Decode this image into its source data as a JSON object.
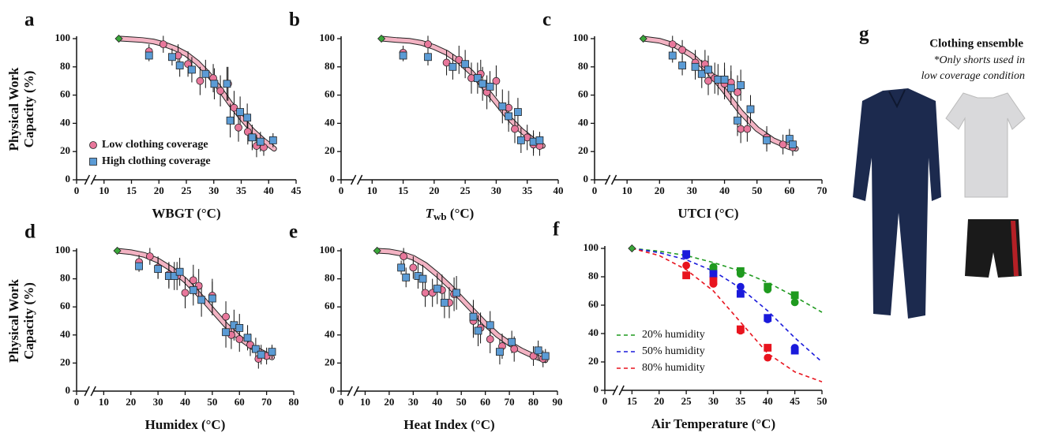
{
  "chart_data": [
    {
      "type": "scatter",
      "panel_label": "a",
      "xlabel": [
        "WBGT (°C)"
      ],
      "ylabel": [
        "Physical Work",
        "Capacity (%)"
      ],
      "xlim": [
        0,
        45
      ],
      "xbreak": [
        0,
        10
      ],
      "xticks": [
        0,
        10,
        15,
        20,
        25,
        30,
        35,
        40,
        45
      ],
      "ylim": [
        0,
        100
      ],
      "yticks": [
        0,
        20,
        40,
        60,
        80,
        100
      ],
      "legend": "lower left",
      "series": [
        {
          "name": "Low clothing coverage",
          "color": "#e8779b",
          "marker": "circle",
          "x": [
            18.2,
            20.8,
            23.5,
            25.3,
            27.5,
            29.9,
            31.2,
            32.6,
            33.7,
            34.5,
            36.2,
            37.8,
            39.1
          ],
          "values": [
            91,
            96,
            88,
            82,
            70,
            72,
            63,
            68,
            51,
            37,
            34,
            24,
            23
          ],
          "errors": [
            5,
            6,
            8,
            9,
            10,
            10,
            11,
            12,
            12,
            10,
            9,
            8,
            6
          ]
        },
        {
          "name": "High clothing coverage",
          "color": "#5b9bd5",
          "marker": "square",
          "x": [
            18.2,
            22.4,
            23.8,
            26.0,
            28.5,
            30.1,
            32.4,
            33.0,
            34.8,
            36.1,
            37.0,
            38.5,
            40.8
          ],
          "values": [
            88,
            87,
            81,
            78,
            75,
            68,
            68,
            42,
            48,
            44,
            30,
            27,
            28
          ],
          "errors": [
            4,
            6,
            8,
            9,
            10,
            11,
            12,
            12,
            11,
            10,
            9,
            7,
            5
          ]
        }
      ],
      "fit": {
        "x": [
          13,
          15,
          17,
          19,
          21,
          23,
          25,
          27,
          29,
          31,
          33,
          35,
          37,
          39,
          41
        ],
        "values": [
          100,
          99.5,
          99,
          98,
          96,
          93,
          89,
          83,
          75,
          65,
          54,
          44,
          35,
          28,
          22
        ]
      },
      "reference": {
        "color": "#3aa63a",
        "x": [
          12.7
        ],
        "values": [
          100
        ]
      }
    },
    {
      "type": "scatter",
      "panel_label": "b",
      "xlabel": [
        "T",
        "wb",
        " (°C)"
      ],
      "xlim": [
        0,
        40
      ],
      "xbreak": [
        0,
        10
      ],
      "xticks": [
        0,
        10,
        15,
        20,
        25,
        30,
        35,
        40
      ],
      "ylim": [
        0,
        100
      ],
      "yticks": [
        0,
        20,
        40,
        60,
        80,
        100
      ],
      "series": [
        {
          "color": "#e8779b",
          "marker": "circle",
          "x": [
            15,
            19,
            22,
            24,
            26,
            27.5,
            28.5,
            30,
            32,
            33,
            35,
            36,
            37
          ],
          "values": [
            90,
            96,
            83,
            85,
            72,
            75,
            62,
            70,
            51,
            36,
            30,
            25,
            24
          ],
          "errors": [
            5,
            6,
            9,
            10,
            11,
            10,
            12,
            11,
            12,
            10,
            9,
            8,
            7
          ]
        },
        {
          "color": "#5b9bd5",
          "marker": "square",
          "x": [
            15,
            19,
            23,
            25,
            27,
            27.8,
            29,
            31,
            32,
            33.5,
            34,
            36,
            37
          ],
          "values": [
            88,
            87,
            80,
            82,
            72,
            68,
            66,
            52,
            45,
            48,
            28,
            27,
            28
          ],
          "errors": [
            4,
            6,
            9,
            10,
            11,
            12,
            11,
            12,
            11,
            10,
            9,
            8,
            6
          ]
        }
      ],
      "fit": {
        "x": [
          11.5,
          14,
          16,
          18,
          20,
          22,
          24,
          26,
          28,
          30,
          32,
          34,
          36,
          37.5
        ],
        "values": [
          100,
          99,
          98.5,
          97,
          94,
          90,
          84,
          76,
          66,
          55,
          44,
          35,
          28,
          24
        ]
      },
      "reference": {
        "color": "#3aa63a",
        "x": [
          11.5
        ],
        "values": [
          100
        ]
      }
    },
    {
      "type": "scatter",
      "panel_label": "c",
      "xlabel": [
        "UTCI (°C)"
      ],
      "xlim": [
        0,
        70
      ],
      "xbreak": [
        0,
        10
      ],
      "xticks": [
        0,
        10,
        20,
        30,
        40,
        50,
        60,
        70
      ],
      "ylim": [
        0,
        100
      ],
      "yticks": [
        0,
        20,
        40,
        60,
        80,
        100
      ],
      "series": [
        {
          "color": "#e8779b",
          "marker": "circle",
          "x": [
            24,
            27,
            31,
            34,
            35,
            37,
            40,
            42,
            44,
            45,
            47,
            53,
            58,
            61
          ],
          "values": [
            96,
            92,
            83,
            82,
            70,
            72,
            68,
            69,
            62,
            36,
            36,
            30,
            25,
            23
          ],
          "errors": [
            6,
            7,
            9,
            10,
            10,
            11,
            11,
            12,
            12,
            10,
            9,
            8,
            7,
            6
          ]
        },
        {
          "color": "#5b9bd5",
          "marker": "square",
          "x": [
            24,
            27,
            31,
            33,
            35,
            38,
            40,
            42,
            44,
            45,
            48,
            53,
            60,
            61
          ],
          "values": [
            88,
            81,
            80,
            75,
            78,
            71,
            71,
            65,
            42,
            67,
            50,
            28,
            29,
            25
          ],
          "errors": [
            5,
            7,
            9,
            10,
            10,
            11,
            12,
            12,
            11,
            11,
            10,
            8,
            7,
            6
          ]
        }
      ],
      "fit": {
        "x": [
          15,
          20,
          25,
          30,
          35,
          40,
          45,
          50,
          55,
          60,
          62
        ],
        "values": [
          100,
          98.5,
          95,
          88,
          77,
          63,
          48,
          36,
          28,
          23,
          22
        ]
      },
      "reference": {
        "color": "#3aa63a",
        "x": [
          15
        ],
        "values": [
          100
        ]
      }
    },
    {
      "type": "scatter",
      "panel_label": "d",
      "xlabel": [
        "Humidex (°C)"
      ],
      "ylabel": [
        "Physical Work",
        "Capacity (%)"
      ],
      "xlim": [
        0,
        80
      ],
      "xbreak": [
        0,
        10
      ],
      "xticks": [
        0,
        10,
        20,
        30,
        40,
        50,
        60,
        70,
        80
      ],
      "ylim": [
        0,
        100
      ],
      "yticks": [
        0,
        20,
        40,
        60,
        80,
        100
      ],
      "series": [
        {
          "color": "#e8779b",
          "marker": "circle",
          "x": [
            23,
            27,
            30,
            34,
            37,
            40,
            43,
            45,
            50,
            55,
            57,
            60,
            64,
            67,
            70
          ],
          "values": [
            92,
            96,
            88,
            83,
            82,
            70,
            79,
            75,
            68,
            53,
            40,
            37,
            33,
            23,
            25
          ],
          "errors": [
            5,
            6,
            8,
            9,
            10,
            11,
            11,
            12,
            12,
            11,
            10,
            9,
            8,
            7,
            6
          ]
        },
        {
          "color": "#5b9bd5",
          "marker": "square",
          "x": [
            23,
            30,
            34,
            36,
            38,
            43,
            46,
            50,
            55,
            58,
            60,
            63,
            66,
            68,
            72
          ],
          "values": [
            89,
            87,
            82,
            82,
            85,
            72,
            65,
            66,
            42,
            47,
            45,
            38,
            30,
            26,
            28
          ],
          "errors": [
            4,
            7,
            9,
            10,
            10,
            11,
            12,
            12,
            11,
            11,
            10,
            9,
            8,
            7,
            5
          ]
        }
      ],
      "fit": {
        "x": [
          15,
          20,
          25,
          30,
          35,
          40,
          45,
          50,
          55,
          60,
          65,
          70,
          72
        ],
        "values": [
          100,
          99,
          97,
          93,
          87,
          79,
          69,
          58,
          47,
          38,
          31,
          26,
          24
        ]
      },
      "reference": {
        "color": "#3aa63a",
        "x": [
          15
        ],
        "values": [
          100
        ]
      }
    },
    {
      "type": "scatter",
      "panel_label": "e",
      "xlabel": [
        "Heat Index (°C)"
      ],
      "xlim": [
        0,
        90
      ],
      "xbreak": [
        0,
        10
      ],
      "xticks": [
        0,
        10,
        20,
        30,
        40,
        50,
        60,
        70,
        80,
        90
      ],
      "ylim": [
        0,
        100
      ],
      "yticks": [
        0,
        20,
        40,
        60,
        80,
        100
      ],
      "series": [
        {
          "color": "#e8779b",
          "marker": "circle",
          "x": [
            26,
            30,
            35,
            38,
            42,
            45,
            47,
            55,
            58,
            62,
            67,
            72,
            80,
            84
          ],
          "values": [
            96,
            88,
            70,
            70,
            72,
            63,
            69,
            50,
            45,
            37,
            32,
            30,
            25,
            23
          ],
          "errors": [
            6,
            8,
            10,
            10,
            11,
            11,
            12,
            12,
            11,
            10,
            9,
            9,
            7,
            6
          ]
        },
        {
          "color": "#5b9bd5",
          "marker": "square",
          "x": [
            25,
            27,
            32,
            34,
            40,
            43,
            48,
            55,
            57,
            62,
            66,
            71,
            82,
            85
          ],
          "values": [
            88,
            81,
            82,
            80,
            73,
            63,
            70,
            53,
            43,
            47,
            28,
            35,
            29,
            25
          ],
          "errors": [
            5,
            7,
            9,
            10,
            11,
            11,
            12,
            12,
            11,
            10,
            9,
            8,
            7,
            5
          ]
        }
      ],
      "fit": {
        "x": [
          15,
          20,
          25,
          30,
          35,
          40,
          45,
          50,
          55,
          60,
          65,
          70,
          75,
          80,
          85
        ],
        "values": [
          100,
          99.5,
          98,
          95,
          90,
          83,
          75,
          66,
          57,
          48,
          40,
          34,
          29,
          25,
          22
        ]
      },
      "reference": {
        "color": "#3aa63a",
        "x": [
          15
        ],
        "values": [
          100
        ]
      }
    },
    {
      "type": "line",
      "panel_label": "f",
      "xlabel": [
        "Air Temperature  (°C)"
      ],
      "xlim": [
        0,
        50
      ],
      "xbreak": [
        0,
        15
      ],
      "xticks": [
        0,
        15,
        20,
        25,
        30,
        35,
        40,
        45,
        50
      ],
      "ylim": [
        0,
        100
      ],
      "yticks": [
        0,
        20,
        40,
        60,
        80,
        100
      ],
      "legend": "lower left",
      "series": [
        {
          "name": "20% humidity",
          "color": "#1f9a1f",
          "x": [
            15,
            20,
            25,
            30,
            35,
            40,
            45,
            50
          ],
          "values": [
            100,
            98,
            95,
            90,
            84,
            76,
            66,
            55
          ]
        },
        {
          "name": "50% humidity",
          "color": "#1a1adb",
          "x": [
            15,
            20,
            25,
            30,
            35,
            40,
            45,
            50
          ],
          "values": [
            100,
            97,
            92,
            84,
            72,
            56,
            37,
            20
          ]
        },
        {
          "name": "80% humidity",
          "color": "#e8141e",
          "x": [
            15,
            20,
            25,
            30,
            35,
            40,
            45,
            50
          ],
          "values": [
            100,
            95,
            85,
            70,
            48,
            26,
            13,
            6
          ]
        }
      ],
      "markers": [
        {
          "color": "#1f9a1f",
          "marker": "circle",
          "x": [
            30,
            35,
            40,
            45
          ],
          "values": [
            87,
            82,
            71,
            62
          ]
        },
        {
          "color": "#1f9a1f",
          "marker": "square",
          "x": [
            30,
            35,
            40,
            45
          ],
          "values": [
            85,
            84,
            73,
            67
          ]
        },
        {
          "color": "#1a1adb",
          "marker": "circle",
          "x": [
            25,
            30,
            35,
            40,
            45
          ],
          "values": [
            95,
            80,
            73,
            50,
            30
          ]
        },
        {
          "color": "#1a1adb",
          "marker": "square",
          "x": [
            25,
            30,
            35,
            40,
            45
          ],
          "values": [
            96,
            82,
            68,
            51,
            28
          ]
        },
        {
          "color": "#e8141e",
          "marker": "circle",
          "x": [
            25,
            30,
            35,
            40
          ],
          "values": [
            88,
            75,
            42,
            23
          ]
        },
        {
          "color": "#e8141e",
          "marker": "square",
          "x": [
            25,
            30,
            35,
            40
          ],
          "values": [
            81,
            77,
            43,
            30
          ]
        }
      ],
      "reference": {
        "color": "#3aa63a",
        "x": [
          15
        ],
        "values": [
          100
        ]
      }
    }
  ],
  "panel_g": {
    "label": "g",
    "title": "Clothing ensemble",
    "note": [
      "*Only shorts used in",
      "low coverage condition"
    ]
  }
}
